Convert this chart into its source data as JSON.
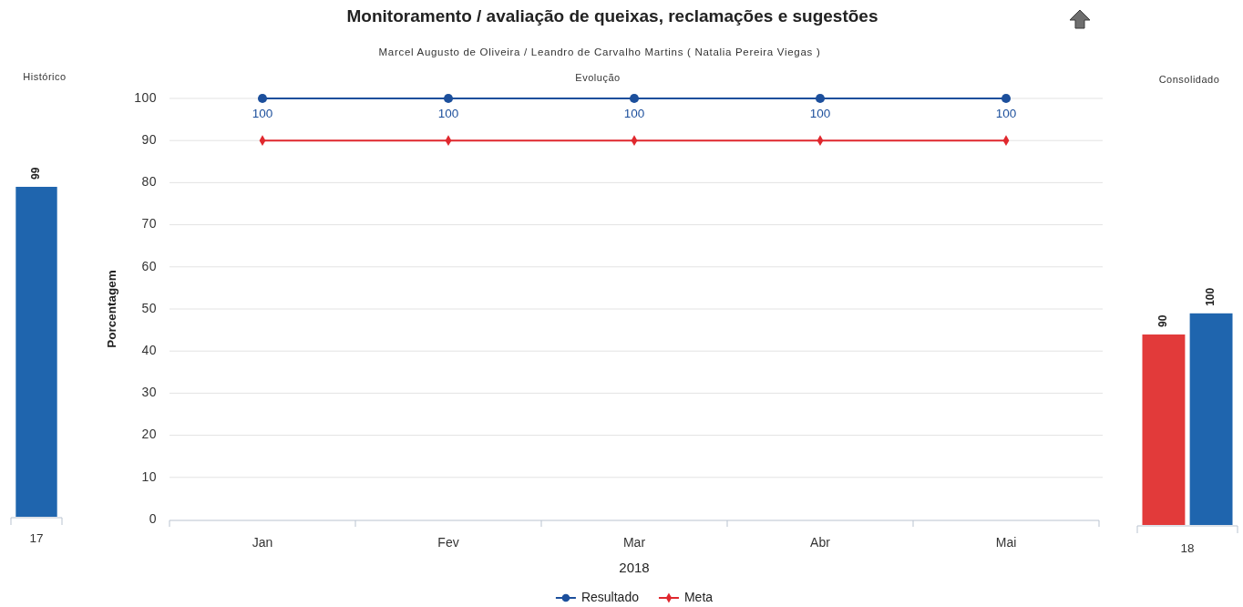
{
  "chart_data": [
    {
      "type": "other",
      "title": "Monitoramento / avaliação de queixas, reclamações e sugestões",
      "subtitle": "Marcel Augusto de Oliveira / Leandro de Carvalho Martins ( Natalia Pereira Viegas )"
    },
    {
      "type": "bar",
      "title": "Histórico",
      "categories": [
        "17"
      ],
      "series": [
        {
          "color": "#1f65ae",
          "values": [
            99
          ]
        }
      ],
      "data_labels": true,
      "tick_labels": "x"
    },
    {
      "type": "line",
      "title": "Evolução",
      "categories": [
        "Jan",
        "Fev",
        "Mar",
        "Abr",
        "Mai"
      ],
      "series": [
        {
          "name": "Resultado",
          "color": "#1c4f9c",
          "marker": "circle",
          "values": [
            100,
            100,
            100,
            100,
            100
          ],
          "value_labels": [
            "100",
            "100",
            "100",
            "100",
            "100"
          ]
        },
        {
          "name": "Meta",
          "color": "#e0282e",
          "marker": "diamond",
          "values": [
            90,
            90,
            90,
            90,
            90
          ]
        }
      ],
      "ylim": [
        0,
        100
      ],
      "yticks": [
        0,
        10,
        20,
        30,
        40,
        50,
        60,
        70,
        80,
        90,
        100
      ],
      "xlabel": "2018",
      "ylabel": "Porcentagem",
      "grid": "y",
      "legend": "bottom"
    },
    {
      "type": "bar",
      "title": "Consolidado",
      "categories": [
        "18"
      ],
      "series": [
        {
          "color": "#e23a3a",
          "values": [
            90
          ]
        },
        {
          "color": "#1f65ae",
          "values": [
            100
          ]
        }
      ],
      "data_labels": true,
      "tick_labels": "x"
    }
  ]
}
